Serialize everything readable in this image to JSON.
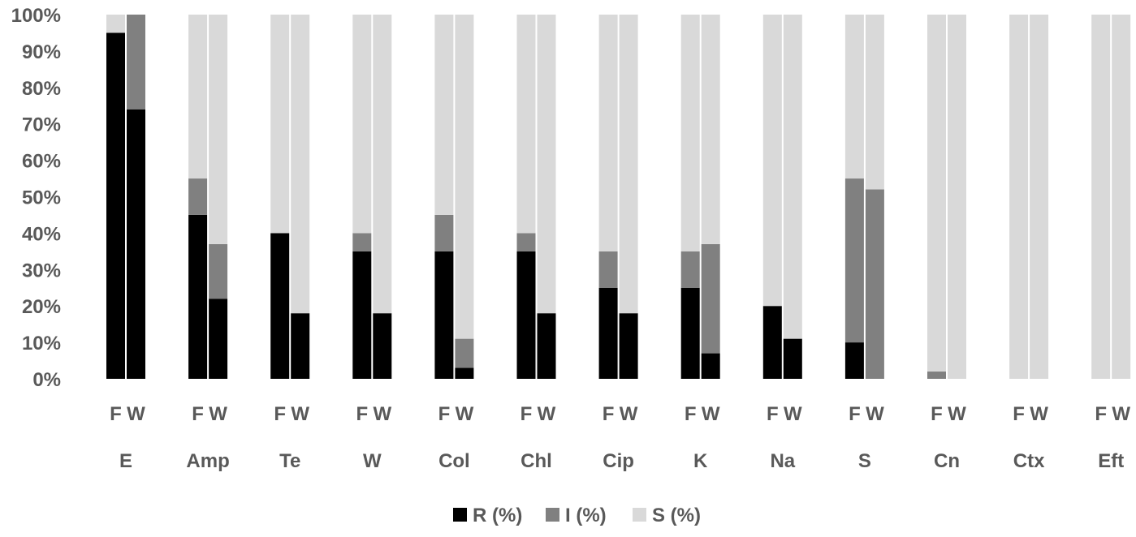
{
  "chart_data": {
    "type": "bar",
    "stacked": true,
    "percent": true,
    "title": "",
    "xlabel": "",
    "ylabel": "",
    "ylim": [
      0,
      100
    ],
    "yticks": [
      "0%",
      "10%",
      "20%",
      "30%",
      "40%",
      "50%",
      "60%",
      "70%",
      "80%",
      "90%",
      "100%"
    ],
    "grid": false,
    "legend_position": "bottom",
    "groups": [
      "E",
      "Amp",
      "Te",
      "W",
      "Col",
      "Chl",
      "Cip",
      "K",
      "Na",
      "S",
      "Cn",
      "Ctx",
      "Eft"
    ],
    "subcategories": [
      "F",
      "W"
    ],
    "series": [
      {
        "name": "R (%)",
        "color": "#000000",
        "values": [
          95,
          74,
          45,
          22,
          40,
          18,
          35,
          18,
          35,
          3,
          35,
          18,
          25,
          18,
          25,
          7,
          20,
          11,
          10,
          0,
          0,
          0,
          0,
          0,
          0,
          0
        ]
      },
      {
        "name": "I (%)",
        "color": "#808080",
        "values": [
          0,
          26,
          10,
          15,
          0,
          0,
          5,
          0,
          10,
          8,
          5,
          0,
          10,
          0,
          10,
          30,
          0,
          0,
          45,
          52,
          2,
          0,
          0,
          0,
          0,
          0
        ]
      },
      {
        "name": "S (%)",
        "color": "#d9d9d9",
        "values": [
          5,
          0,
          45,
          63,
          60,
          82,
          60,
          82,
          55,
          89,
          60,
          82,
          65,
          82,
          65,
          63,
          80,
          89,
          45,
          48,
          98,
          100,
          100,
          100,
          100,
          100
        ]
      }
    ]
  }
}
